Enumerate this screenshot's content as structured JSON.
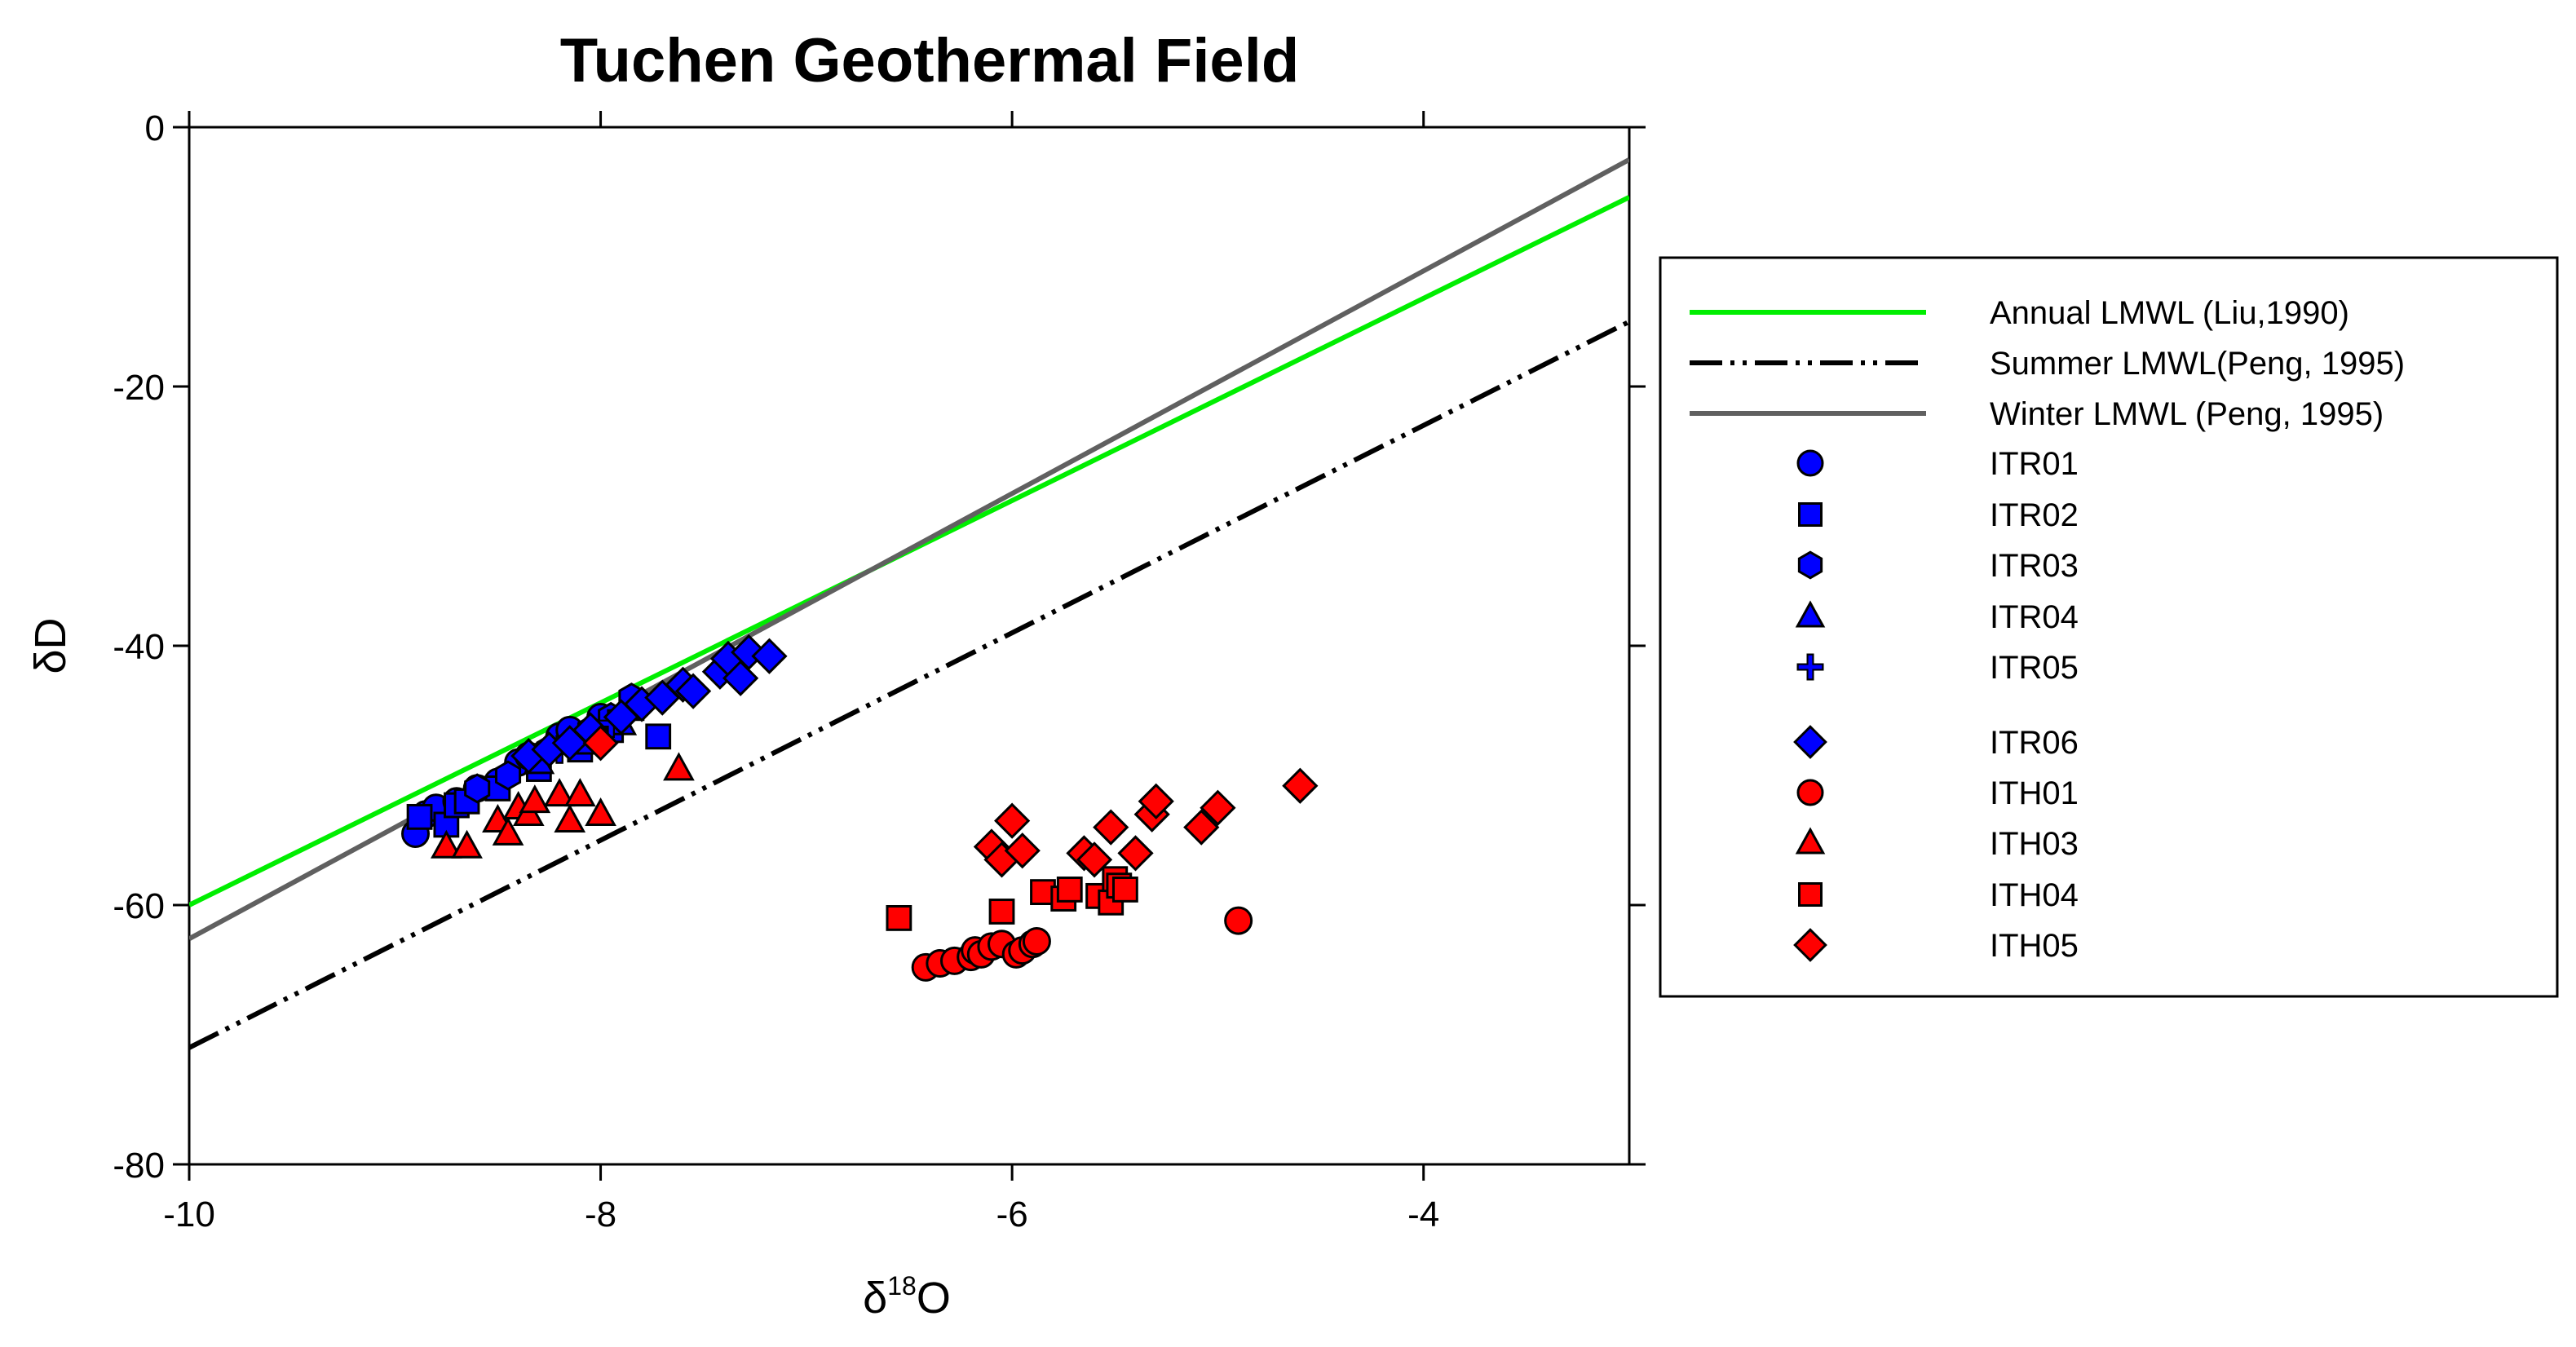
{
  "chart_data": {
    "type": "scatter",
    "title": "Tuchen Geothermal Field",
    "xlabel": {
      "prefix": "δ",
      "sup": "18",
      "suffix": "O"
    },
    "ylabel": "δD",
    "xlim": [
      -10,
      -3
    ],
    "ylim": [
      -80,
      0
    ],
    "x_ticks": [
      -10,
      -8,
      -6,
      -4
    ],
    "y_ticks": [
      0,
      -20,
      -40,
      -60,
      -80
    ],
    "x_tick_labels": [
      "-10",
      "-8",
      "-6",
      "-4"
    ],
    "y_tick_labels": [
      "0",
      "-20",
      "-40",
      "-60",
      "-80"
    ],
    "grid": false,
    "legend_position": "right",
    "lines": [
      {
        "name": "Annual LMWL (Liu,1990)",
        "style": "solid",
        "color": "#00ee00",
        "x": [
          -10,
          -3
        ],
        "y": [
          -60.0,
          -5.4
        ]
      },
      {
        "name": "Summer  LMWL(Peng, 1995)",
        "style": "dash-dot-dot",
        "color": "#000000",
        "x": [
          -10,
          -3
        ],
        "y": [
          -71.0,
          -15.0
        ]
      },
      {
        "name": "Winter LMWL (Peng, 1995)",
        "style": "solid",
        "color": "#606060",
        "x": [
          -10,
          -3
        ],
        "y": [
          -62.6,
          -2.5
        ]
      }
    ],
    "series": [
      {
        "name": "ITR01",
        "marker": "circle",
        "color": "#0000ff",
        "x": [
          -8.9,
          -8.85,
          -8.8,
          -8.7,
          -8.6,
          -8.5,
          -8.4,
          -8.35,
          -8.2,
          -8.15,
          -8.0
        ],
        "y": [
          -54.5,
          -53.0,
          -52.5,
          -52.0,
          -51.0,
          -50.5,
          -49.0,
          -48.5,
          -47.0,
          -46.5,
          -45.5
        ]
      },
      {
        "name": "ITR02",
        "marker": "square",
        "color": "#0000ff",
        "x": [
          -8.88,
          -8.75,
          -8.7,
          -8.65,
          -8.5,
          -8.3,
          -8.1,
          -7.95,
          -7.85,
          -7.72
        ],
        "y": [
          -53.2,
          -53.8,
          -52.3,
          -52.0,
          -51.0,
          -49.5,
          -48.0,
          -46.5,
          -44.8,
          -47.0
        ]
      },
      {
        "name": "ITR03",
        "marker": "hexagon",
        "color": "#0000ff",
        "x": [
          -8.6,
          -8.45,
          -8.3,
          -8.25,
          -8.05,
          -7.95,
          -7.85
        ],
        "y": [
          -51.0,
          -50.0,
          -48.5,
          -48.0,
          -46.5,
          -45.5,
          -44.0
        ]
      },
      {
        "name": "ITR04",
        "marker": "triangle",
        "color": "#0000ff",
        "x": [
          -8.3,
          -8.1,
          -7.9
        ],
        "y": [
          -49.0,
          -47.5,
          -46.0
        ]
      },
      {
        "name": "ITR05",
        "marker": "plus",
        "color": "#0000ff",
        "x": [
          -8.2,
          -7.95
        ],
        "y": [
          -48.0,
          -46.0
        ]
      },
      {
        "name": "ITR06",
        "marker": "diamond",
        "color": "#0000ff",
        "x": [
          -8.35,
          -8.25,
          -8.15,
          -8.05,
          -7.9,
          -7.8,
          -7.7,
          -7.6,
          -7.55,
          -7.42,
          -7.38,
          -7.32,
          -7.28,
          -7.18
        ],
        "y": [
          -48.5,
          -48.0,
          -47.5,
          -46.5,
          -45.5,
          -44.5,
          -44.0,
          -43.0,
          -43.5,
          -42.0,
          -41.0,
          -42.5,
          -40.5,
          -40.8
        ]
      },
      {
        "name": "ITH01",
        "marker": "circle",
        "color": "#ff0000",
        "x": [
          -6.42,
          -6.35,
          -6.28,
          -6.2,
          -6.18,
          -6.15,
          -6.1,
          -6.05,
          -5.98,
          -5.95,
          -5.9,
          -5.88,
          -4.9
        ],
        "y": [
          -64.8,
          -64.5,
          -64.3,
          -64.0,
          -63.5,
          -63.8,
          -63.2,
          -63.0,
          -63.8,
          -63.5,
          -63.0,
          -62.8,
          -61.2
        ]
      },
      {
        "name": "ITH03",
        "marker": "triangle",
        "color": "#ff0000",
        "x": [
          -8.75,
          -8.65,
          -8.5,
          -8.45,
          -8.4,
          -8.35,
          -8.32,
          -8.2,
          -8.15,
          -8.1,
          -8.0,
          -7.62
        ],
        "y": [
          -55.5,
          -55.5,
          -53.5,
          -54.5,
          -52.5,
          -53.0,
          -52.0,
          -51.5,
          -53.5,
          -51.5,
          -53.0,
          -49.5
        ]
      },
      {
        "name": "ITH04",
        "marker": "square",
        "color": "#ff0000",
        "x": [
          -6.55,
          -6.05,
          -5.85,
          -5.75,
          -5.72,
          -5.58,
          -5.52,
          -5.5,
          -5.48,
          -5.45
        ],
        "y": [
          -61.0,
          -60.5,
          -59.0,
          -59.5,
          -58.8,
          -59.3,
          -59.8,
          -58.0,
          -58.5,
          -58.8
        ]
      },
      {
        "name": "ITH05",
        "marker": "diamond",
        "color": "#ff0000",
        "x": [
          -8.0,
          -6.1,
          -6.05,
          -6.0,
          -5.95,
          -5.65,
          -5.6,
          -5.52,
          -5.4,
          -5.32,
          -5.3,
          -5.08,
          -5.0,
          -4.6
        ],
        "y": [
          -47.5,
          -55.5,
          -56.5,
          -53.5,
          -55.8,
          -56.0,
          -56.5,
          -54.0,
          -56.0,
          -53.0,
          -52.0,
          -54.0,
          -52.5,
          -50.8
        ]
      }
    ]
  }
}
